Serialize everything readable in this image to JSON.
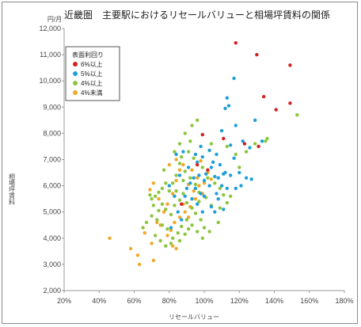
{
  "title": "近畿圏　主要駅におけるリセールバリューと相場坪賃料の関係",
  "chart_data": {
    "type": "scatter",
    "title": "近畿圏　主要駅におけるリセールバリューと相場坪賃料の関係",
    "xlabel": "リセールバリュー",
    "ylabel": "相場坪賃料",
    "yunit": "円/月",
    "xlim": [
      20,
      180
    ],
    "ylim": [
      2000,
      12000
    ],
    "x_ticks": [
      "20%",
      "40%",
      "60%",
      "80%",
      "100%",
      "120%",
      "140%",
      "160%",
      "180%"
    ],
    "y_ticks": [
      "2,000",
      "3,000",
      "4,000",
      "5,000",
      "6,000",
      "7,000",
      "8,000",
      "9,000",
      "10,000",
      "11,000",
      "12,000"
    ],
    "grid": false,
    "legend_title": "表面利回り",
    "legend_position": "top-left",
    "series": [
      {
        "name": "6%以上",
        "color": "#d42020",
        "points": [
          [
            118,
            11450
          ],
          [
            130,
            11000
          ],
          [
            149,
            10600
          ],
          [
            134,
            9400
          ],
          [
            141,
            8900
          ],
          [
            149,
            9150
          ],
          [
            131,
            7500
          ],
          [
            99,
            7950
          ],
          [
            111,
            7800
          ],
          [
            123,
            7600
          ],
          [
            87,
            5300
          ],
          [
            96,
            6800
          ],
          [
            102,
            6600
          ]
        ]
      },
      {
        "name": "5%以上",
        "color": "#1fa0d8",
        "points": [
          [
            117,
            10100
          ],
          [
            113,
            9350
          ],
          [
            114,
            9050
          ],
          [
            112,
            8950
          ],
          [
            118,
            8300
          ],
          [
            129,
            8500
          ],
          [
            122,
            7700
          ],
          [
            115,
            7550
          ],
          [
            133,
            7700
          ],
          [
            110,
            8100
          ],
          [
            126,
            7450
          ],
          [
            107,
            7200
          ],
          [
            103,
            7350
          ],
          [
            99,
            7100
          ],
          [
            117,
            7050
          ],
          [
            120,
            6500
          ],
          [
            124,
            6300
          ],
          [
            127,
            6250
          ],
          [
            115,
            6400
          ],
          [
            121,
            6000
          ],
          [
            109,
            6800
          ],
          [
            104,
            6700
          ],
          [
            108,
            6300
          ],
          [
            111,
            6450
          ],
          [
            105,
            6900
          ],
          [
            96,
            6900
          ],
          [
            101,
            6450
          ],
          [
            106,
            6350
          ],
          [
            110,
            6000
          ],
          [
            113,
            5900
          ],
          [
            107,
            5700
          ],
          [
            103,
            6000
          ],
          [
            100,
            6200
          ],
          [
            97,
            6400
          ],
          [
            94,
            6300
          ],
          [
            92,
            6100
          ],
          [
            95,
            5900
          ],
          [
            98,
            5700
          ],
          [
            90,
            5900
          ],
          [
            93,
            5500
          ],
          [
            96,
            5300
          ],
          [
            100,
            5600
          ],
          [
            104,
            5200
          ],
          [
            108,
            5500
          ],
          [
            111,
            5100
          ],
          [
            106,
            5000
          ],
          [
            99,
            5000
          ],
          [
            89,
            5600
          ],
          [
            86,
            6400
          ],
          [
            91,
            6700
          ],
          [
            88,
            7300
          ],
          [
            84,
            7200
          ],
          [
            95,
            7200
          ],
          [
            80,
            6000
          ],
          [
            83,
            5600
          ],
          [
            85,
            5000
          ],
          [
            87,
            4700
          ],
          [
            81,
            4400
          ],
          [
            98,
            7500
          ],
          [
            112,
            6500
          ],
          [
            118,
            5900
          ]
        ]
      },
      {
        "name": "4%以上",
        "color": "#8cc63e",
        "points": [
          [
            153,
            8700
          ],
          [
            136,
            7800
          ],
          [
            129,
            7600
          ],
          [
            135,
            7700
          ],
          [
            124,
            7300
          ],
          [
            113,
            7500
          ],
          [
            118,
            7200
          ],
          [
            104,
            7600
          ],
          [
            93,
            8300
          ],
          [
            96,
            8500
          ],
          [
            89,
            8000
          ],
          [
            92,
            7700
          ],
          [
            86,
            7600
          ],
          [
            83,
            7300
          ],
          [
            87,
            7100
          ],
          [
            91,
            7300
          ],
          [
            94,
            7050
          ],
          [
            99,
            6700
          ],
          [
            102,
            6300
          ],
          [
            106,
            6100
          ],
          [
            109,
            5900
          ],
          [
            111,
            5650
          ],
          [
            113,
            5350
          ],
          [
            109,
            5150
          ],
          [
            104,
            5250
          ],
          [
            101,
            5550
          ],
          [
            97,
            5750
          ],
          [
            95,
            6050
          ],
          [
            92,
            6300
          ],
          [
            89,
            6550
          ],
          [
            86,
            6850
          ],
          [
            84,
            6400
          ],
          [
            82,
            6100
          ],
          [
            80,
            5800
          ],
          [
            78,
            6100
          ],
          [
            76,
            5900
          ],
          [
            74,
            5750
          ],
          [
            72,
            5600
          ],
          [
            70,
            5500
          ],
          [
            69,
            5650
          ],
          [
            71,
            5250
          ],
          [
            74,
            5050
          ],
          [
            76,
            5300
          ],
          [
            78,
            5100
          ],
          [
            81,
            4900
          ],
          [
            83,
            5250
          ],
          [
            86,
            5450
          ],
          [
            88,
            5700
          ],
          [
            90,
            5350
          ],
          [
            93,
            5150
          ],
          [
            95,
            4950
          ],
          [
            98,
            4700
          ],
          [
            100,
            4400
          ],
          [
            103,
            4250
          ],
          [
            96,
            4250
          ],
          [
            93,
            4500
          ],
          [
            90,
            4700
          ],
          [
            87,
            4450
          ],
          [
            85,
            4200
          ],
          [
            82,
            4000
          ],
          [
            79,
            4350
          ],
          [
            76,
            4500
          ],
          [
            73,
            4700
          ],
          [
            70,
            4850
          ],
          [
            67,
            4600
          ],
          [
            65,
            4400
          ],
          [
            72,
            4100
          ],
          [
            75,
            3900
          ],
          [
            78,
            3700
          ],
          [
            81,
            3800
          ],
          [
            86,
            3900
          ],
          [
            89,
            4150
          ],
          [
            91,
            4350
          ],
          [
            99,
            4000
          ],
          [
            108,
            4600
          ],
          [
            115,
            5600
          ],
          [
            120,
            6700
          ],
          [
            97,
            5400
          ],
          [
            84,
            5800
          ],
          [
            77,
            6600
          ],
          [
            88,
            6200
          ]
        ]
      },
      {
        "name": "4%未満",
        "color": "#f0a828",
        "points": [
          [
            46,
            4000
          ],
          [
            58,
            3600
          ],
          [
            62,
            3350
          ],
          [
            63,
            3000
          ],
          [
            66,
            4200
          ],
          [
            70,
            3800
          ],
          [
            71,
            3150
          ],
          [
            73,
            4600
          ],
          [
            75,
            4500
          ],
          [
            77,
            5000
          ],
          [
            79,
            5300
          ],
          [
            82,
            5700
          ],
          [
            84,
            6200
          ],
          [
            86,
            6600
          ],
          [
            88,
            6800
          ],
          [
            84,
            7000
          ],
          [
            80,
            6800
          ],
          [
            71,
            6100
          ],
          [
            69,
            5850
          ],
          [
            74,
            5500
          ],
          [
            91,
            6050
          ],
          [
            94,
            5800
          ],
          [
            97,
            6000
          ],
          [
            99,
            5700
          ],
          [
            95,
            5500
          ],
          [
            92,
            5200
          ],
          [
            89,
            5000
          ],
          [
            86,
            4800
          ],
          [
            83,
            4600
          ],
          [
            81,
            4300
          ],
          [
            79,
            4100
          ],
          [
            82,
            3700
          ],
          [
            84,
            3600
          ],
          [
            91,
            4800
          ],
          [
            96,
            6300
          ],
          [
            93,
            6600
          ],
          [
            98,
            6950
          ],
          [
            102,
            6500
          ],
          [
            104,
            6250
          ],
          [
            100,
            6100
          ],
          [
            88,
            5300
          ]
        ]
      }
    ]
  }
}
